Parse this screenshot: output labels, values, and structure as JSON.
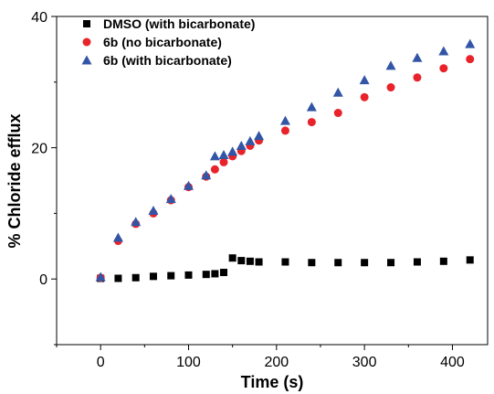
{
  "chart_data": {
    "type": "scatter",
    "xlabel": "Time (s)",
    "ylabel": "% Chloride efflux",
    "xlim": [
      -50,
      440
    ],
    "ylim": [
      -10,
      40
    ],
    "xticks": [
      0,
      100,
      200,
      300,
      400
    ],
    "yticks": [
      0,
      20,
      40
    ],
    "minor_xticks": [
      -50,
      50,
      150,
      250,
      350
    ],
    "minor_yticks": [
      -10,
      10,
      30
    ],
    "grid": false,
    "legend_position": "top-left",
    "series": [
      {
        "name": "DMSO (with bicarbonate)",
        "marker": "square",
        "color": "#000000",
        "points": [
          [
            0,
            0.1
          ],
          [
            20,
            0.1
          ],
          [
            40,
            0.2
          ],
          [
            60,
            0.4
          ],
          [
            80,
            0.5
          ],
          [
            100,
            0.6
          ],
          [
            120,
            0.7
          ],
          [
            130,
            0.8
          ],
          [
            140,
            1.0
          ],
          [
            150,
            3.2
          ],
          [
            160,
            2.8
          ],
          [
            170,
            2.7
          ],
          [
            180,
            2.6
          ],
          [
            210,
            2.6
          ],
          [
            240,
            2.5
          ],
          [
            270,
            2.5
          ],
          [
            300,
            2.5
          ],
          [
            330,
            2.5
          ],
          [
            360,
            2.6
          ],
          [
            390,
            2.7
          ],
          [
            420,
            2.9
          ]
        ]
      },
      {
        "name": "6b (no bicarbonate)",
        "marker": "circle",
        "color": "#e8232a",
        "points": [
          [
            0,
            0.2
          ],
          [
            20,
            5.8
          ],
          [
            40,
            8.4
          ],
          [
            60,
            10.0
          ],
          [
            80,
            12.0
          ],
          [
            100,
            14.0
          ],
          [
            120,
            15.6
          ],
          [
            130,
            16.7
          ],
          [
            140,
            17.8
          ],
          [
            150,
            18.7
          ],
          [
            160,
            19.5
          ],
          [
            170,
            20.3
          ],
          [
            180,
            21.1
          ],
          [
            210,
            22.6
          ],
          [
            240,
            23.9
          ],
          [
            270,
            25.3
          ],
          [
            300,
            27.7
          ],
          [
            330,
            29.2
          ],
          [
            360,
            30.7
          ],
          [
            390,
            32.1
          ],
          [
            420,
            33.5
          ]
        ]
      },
      {
        "name": "6b (with bicarbonate)",
        "marker": "triangle",
        "color": "#3355a6",
        "points": [
          [
            0,
            0.3
          ],
          [
            20,
            6.3
          ],
          [
            40,
            8.7
          ],
          [
            60,
            10.4
          ],
          [
            80,
            12.2
          ],
          [
            100,
            14.2
          ],
          [
            120,
            15.8
          ],
          [
            130,
            18.7
          ],
          [
            140,
            18.9
          ],
          [
            150,
            19.4
          ],
          [
            160,
            20.3
          ],
          [
            170,
            21.0
          ],
          [
            180,
            21.8
          ],
          [
            210,
            24.1
          ],
          [
            240,
            26.2
          ],
          [
            270,
            28.4
          ],
          [
            300,
            30.3
          ],
          [
            330,
            32.5
          ],
          [
            360,
            33.7
          ],
          [
            390,
            34.7
          ],
          [
            420,
            35.8
          ]
        ]
      }
    ]
  }
}
